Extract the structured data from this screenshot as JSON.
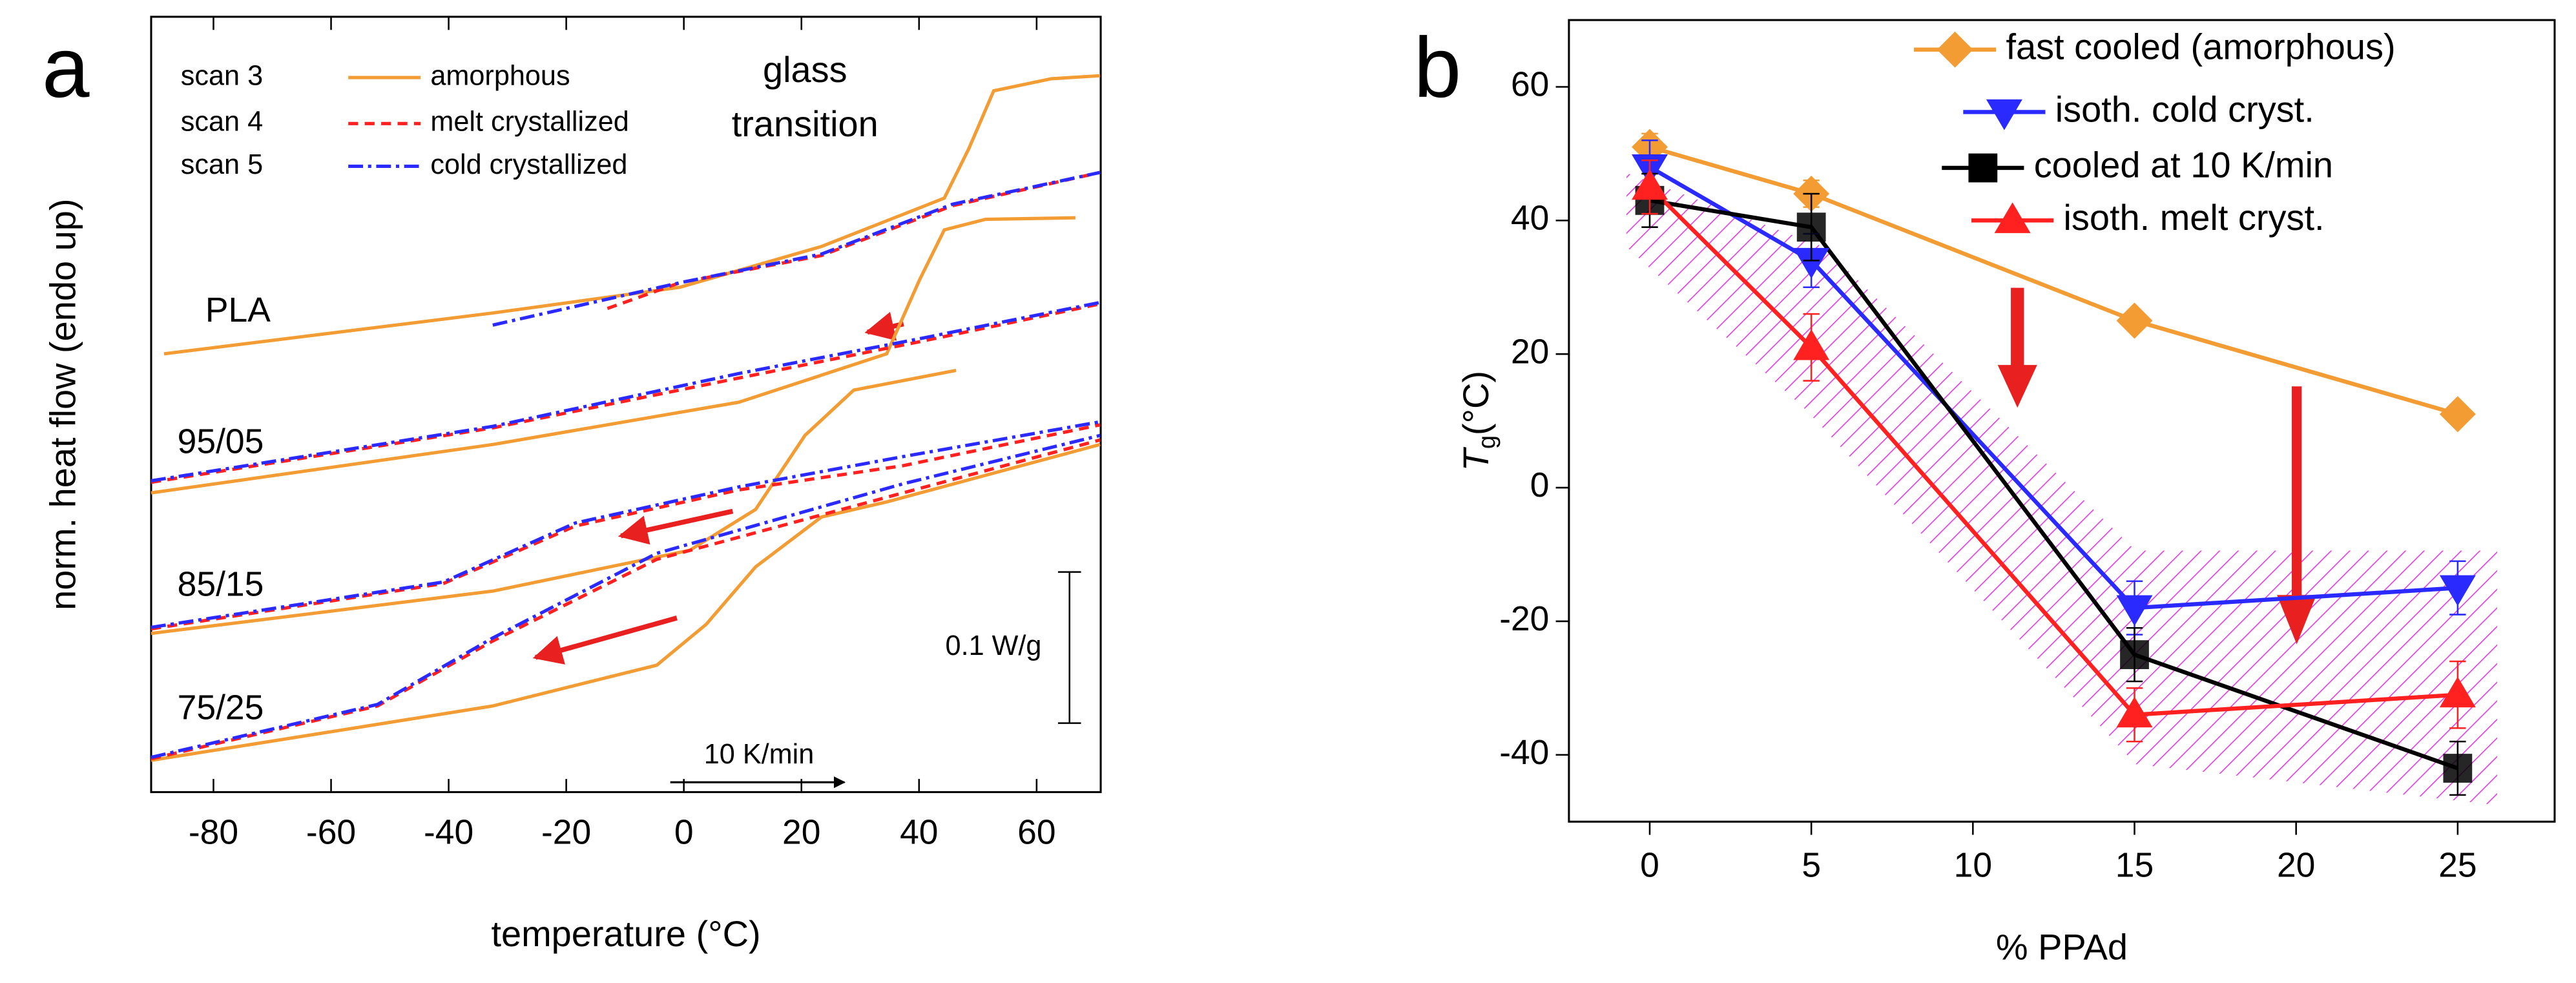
{
  "chart_data": [
    {
      "type": "line",
      "panel": "a",
      "xlabel": "temperature (°C)",
      "ylabel": "norm. heat flow (endo up)",
      "xlim": [
        -90.6,
        70.9
      ],
      "xticks": [
        -80,
        -60,
        -40,
        -20,
        0,
        20,
        40,
        60
      ],
      "ylim": [
        0,
        0.513
      ],
      "legend": [
        {
          "scan": "scan 3",
          "label": "amorphous",
          "color": "#f39c34",
          "dash": "solid"
        },
        {
          "scan": "scan 4",
          "label": "melt crystallized",
          "color": "#ff2020",
          "dash": "dashed"
        },
        {
          "scan": "scan 5",
          "label": "cold crystallized",
          "color": "#2a2aff",
          "dash": "dashdot"
        }
      ],
      "samples": [
        {
          "label": "PLA",
          "curves": [
            {
              "x": [
                -88.4,
                -32.5,
                -0.7,
                23.4,
                44.3,
                48.5,
                52.7,
                62.5,
                70.8
              ],
              "y": [
                0.29,
                0.317,
                0.334,
                0.361,
                0.393,
                0.426,
                0.464,
                0.472,
                0.474
              ]
            },
            {
              "x": [
                -13.0,
                -0.7,
                23.4,
                45.7,
                70.8
              ],
              "y": [
                0.32,
                0.337,
                0.355,
                0.388,
                0.41
              ]
            },
            {
              "x": [
                -32.5,
                -0.7,
                23.4,
                45.7,
                70.8
              ],
              "y": [
                0.309,
                0.337,
                0.356,
                0.389,
                0.41
              ]
            }
          ]
        },
        {
          "label": "95/05",
          "curves": [
            {
              "x": [
                -90.6,
                -32.5,
                9.4,
                34.5,
                40.1,
                44.3,
                51.3,
                66.6
              ],
              "y": [
                0.198,
                0.23,
                0.258,
                0.29,
                0.339,
                0.372,
                0.379,
                0.38
              ]
            },
            {
              "x": [
                -90.6,
                -32.5,
                9.4,
                40.1,
                70.8
              ],
              "y": [
                0.205,
                0.241,
                0.274,
                0.298,
                0.323
              ]
            },
            {
              "x": [
                -90.6,
                -32.5,
                9.4,
                40.1,
                70.8
              ],
              "y": [
                0.206,
                0.242,
                0.277,
                0.3,
                0.324
              ]
            }
          ]
        },
        {
          "label": "85/15",
          "curves": [
            {
              "x": [
                -90.6,
                -32.5,
                1.0,
                12.2,
                20.6,
                28.9,
                46.3
              ],
              "y": [
                0.105,
                0.133,
                0.16,
                0.187,
                0.236,
                0.266,
                0.279
              ]
            },
            {
              "x": [
                -90.6,
                -40.9,
                -18.5,
                9.4,
                37.3,
                70.8
              ],
              "y": [
                0.108,
                0.138,
                0.176,
                0.2,
                0.216,
                0.243
              ]
            },
            {
              "x": [
                -90.6,
                -40.9,
                -18.5,
                9.4,
                37.3,
                70.8
              ],
              "y": [
                0.109,
                0.139,
                0.178,
                0.202,
                0.222,
                0.245
              ]
            }
          ]
        },
        {
          "label": "75/25",
          "curves": [
            {
              "x": [
                -90.6,
                -32.5,
                -4.6,
                3.8,
                12.2,
                23.4,
                34.5,
                70.8
              ],
              "y": [
                0.021,
                0.057,
                0.084,
                0.111,
                0.149,
                0.182,
                0.192,
                0.23
              ]
            },
            {
              "x": [
                -90.6,
                -52.1,
                -32.5,
                -4.6,
                37.3,
                70.8
              ],
              "y": [
                0.022,
                0.057,
                0.1,
                0.154,
                0.198,
                0.233
              ]
            },
            {
              "x": [
                -90.6,
                -52.1,
                -32.5,
                -4.6,
                37.3,
                70.8
              ],
              "y": [
                0.023,
                0.058,
                0.102,
                0.158,
                0.204,
                0.236
              ]
            }
          ]
        }
      ],
      "annotations": [
        "glass",
        "transition"
      ],
      "rate_label": "10 K/min",
      "scale_bar": {
        "value": 0.1,
        "label": "0.1 W/g"
      }
    },
    {
      "type": "line",
      "panel": "b",
      "xlabel": "% PPAd",
      "ylabel_symbol": "T",
      "ylabel_sub": "g",
      "ylabel_unit": "(°C)",
      "x": [
        0,
        5,
        15,
        25
      ],
      "xlim": [
        -2.5,
        28
      ],
      "xticks": [
        0,
        5,
        10,
        15,
        20,
        25
      ],
      "ylim": [
        -50,
        70
      ],
      "yticks": [
        -40,
        -20,
        0,
        20,
        40,
        60
      ],
      "legend_position": "upper right",
      "series": [
        {
          "name": "fast cooled (amorphous)",
          "color": "#f39c34",
          "marker": "diamond",
          "values": [
            51,
            44,
            25,
            11
          ],
          "errors": [
            2,
            2,
            1,
            1
          ]
        },
        {
          "name": "isoth. cold cryst.",
          "color": "#2a2aff",
          "marker": "triangle-down",
          "values": [
            48,
            34,
            -18,
            -15
          ],
          "errors": [
            4,
            4,
            4,
            4
          ]
        },
        {
          "name": "cooled at 10 K/min",
          "color": "#000000",
          "marker": "square",
          "values": [
            43,
            39,
            -25,
            -42
          ],
          "errors": [
            4,
            5,
            4,
            4
          ]
        },
        {
          "name": "isoth. melt cryst.",
          "color": "#ff2020",
          "marker": "triangle-up",
          "values": [
            45,
            21,
            -34,
            -31
          ],
          "errors": [
            4,
            5,
            4,
            5
          ]
        }
      ]
    }
  ]
}
